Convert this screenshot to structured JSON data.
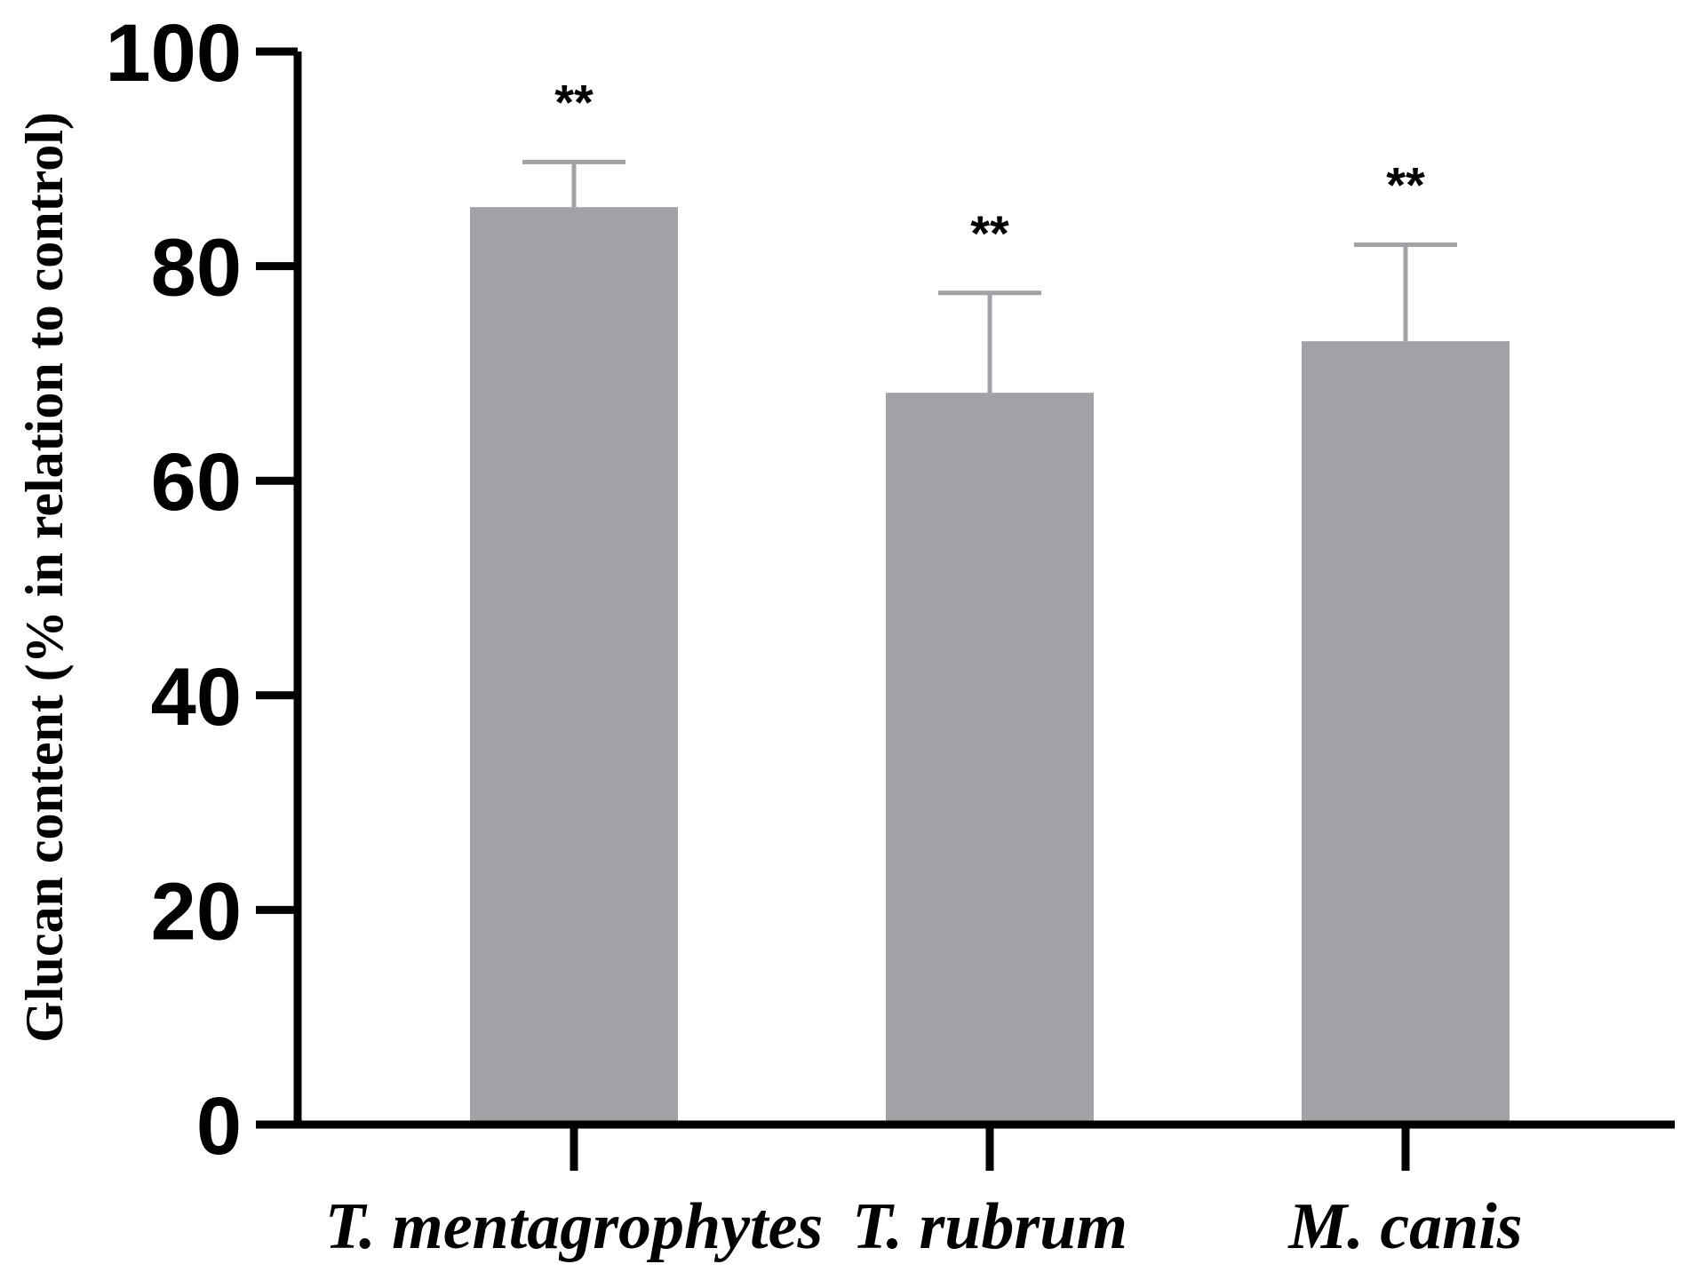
{
  "chart_data": {
    "type": "bar",
    "title": "",
    "xlabel": "",
    "ylabel": "Glucan content (% in relation to control)",
    "categories": [
      "T. mentagrophytes",
      "T. rubrum",
      "M. canis"
    ],
    "values": [
      85.5,
      68.2,
      73.0
    ],
    "errors": [
      4.2,
      9.3,
      9.0
    ],
    "significance": [
      "**",
      "**",
      "**"
    ],
    "ylim": [
      0,
      100
    ],
    "yticks": [
      "0",
      "20",
      "40",
      "60",
      "80",
      "100"
    ],
    "bar_color": "#a2a1a6",
    "error_color": "#a2a1a6",
    "axis_color": "#000000",
    "grid": false
  }
}
